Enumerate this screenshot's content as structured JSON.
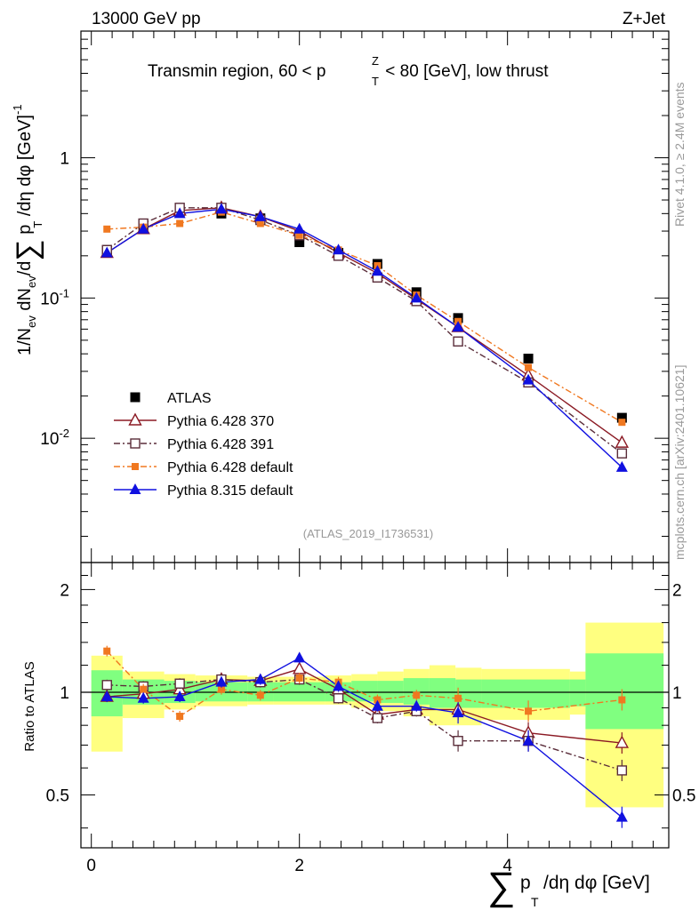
{
  "header": {
    "energy_label": "13000 GeV pp",
    "process_label": "Z+Jet",
    "title_prefix": "Transmin region, 60 < p",
    "title_sup": "Z",
    "title_sub": "T",
    "title_suffix": " < 80 [GeV], low thrust",
    "analysis_id": "(ATLAS_2019_I1736531)"
  },
  "side_labels": {
    "rivet": "Rivet 4.1.0, ≥ 2.4M events",
    "mcplots": "mcplots.cern.ch [arXiv:2401.10621]"
  },
  "axes": {
    "y_main_label": "1/N_ev dN_ev/d∑p_T/dη dφ [GeV]^-1",
    "y_main_ticks": [
      "10",
      "1",
      "10",
      "10"
    ],
    "y_main_exps": [
      "-2",
      "",
      "-1",
      ""
    ],
    "y_ratio_label": "Ratio to ATLAS",
    "y_ratio_ticks": [
      "0.5",
      "1",
      "2"
    ],
    "x_ticks": [
      "0",
      "2",
      "4"
    ],
    "x_label_sum": "∑",
    "x_label_p": "p",
    "x_label_sub": "T",
    "x_label_rest": "/dη dφ [GeV]"
  },
  "chart_data": {
    "type": "line",
    "title": "Transmin region, 60 < pT^Z < 80 [GeV], low thrust",
    "xlabel": "∑ pT/dη dφ [GeV]",
    "ylabel": "1/N_ev dN_ev/d∑pT/dη dφ [GeV]^-1",
    "xlim": [
      -0.1,
      5.55
    ],
    "ylim_main": [
      0.0013,
      8
    ],
    "yscale_main": "log",
    "ylim_ratio": [
      0.35,
      2.4
    ],
    "yscale_ratio": "log",
    "x": [
      0.15,
      0.5,
      0.85,
      1.25,
      1.625,
      2.0,
      2.375,
      2.75,
      3.125,
      3.525,
      4.2,
      5.1
    ],
    "bin_edges": [
      0.0,
      0.3,
      0.7,
      1.0,
      1.5,
      1.75,
      2.25,
      2.5,
      3.0,
      3.25,
      3.8,
      4.6,
      5.6
    ],
    "band_edges": [
      0,
      0.3,
      0.7,
      1.0,
      1.5,
      1.75,
      2.25,
      2.5,
      2.75,
      3.0,
      3.25,
      3.5,
      3.75,
      4.6,
      4.75,
      5.5
    ],
    "band_inner_lo": [
      0.85,
      0.92,
      0.93,
      0.94,
      0.94,
      0.94,
      0.94,
      0.94,
      0.93,
      0.92,
      0.9,
      0.9,
      0.9,
      0.91,
      0.78
    ],
    "band_inner_hi": [
      1.16,
      1.09,
      1.08,
      1.07,
      1.07,
      1.07,
      1.07,
      1.08,
      1.08,
      1.1,
      1.1,
      1.09,
      1.09,
      1.09,
      1.3
    ],
    "band_outer_lo": [
      0.67,
      0.84,
      0.89,
      0.91,
      0.92,
      0.92,
      0.92,
      0.9,
      0.88,
      0.85,
      0.8,
      0.8,
      0.83,
      0.86,
      0.46
    ],
    "band_outer_hi": [
      1.28,
      1.15,
      1.13,
      1.12,
      1.11,
      1.11,
      1.12,
      1.13,
      1.15,
      1.17,
      1.2,
      1.18,
      1.17,
      1.15,
      1.6
    ],
    "series": [
      {
        "name": "ATLAS",
        "marker": "square-filled",
        "color": "#000000",
        "line": "none",
        "values": [
          0.22,
          0.31,
          0.41,
          0.4,
          0.37,
          0.25,
          0.21,
          0.175,
          0.11,
          0.072,
          0.037,
          0.014
        ],
        "ratio": [
          1,
          1,
          1,
          1,
          1,
          1,
          1,
          1,
          1,
          1,
          1,
          1
        ]
      },
      {
        "name": "Pythia 6.428 370",
        "marker": "triangle-open",
        "color": "#8b1a24",
        "line": "solid",
        "values": [
          0.21,
          0.31,
          0.42,
          0.44,
          0.38,
          0.3,
          0.21,
          0.15,
          0.098,
          0.062,
          0.028,
          0.0093
        ],
        "ratio": [
          0.97,
          0.99,
          1.02,
          1.09,
          1.08,
          1.17,
          1.02,
          0.86,
          0.89,
          0.89,
          0.76,
          0.71
        ]
      },
      {
        "name": "Pythia 6.428 391",
        "marker": "square-open",
        "color": "#5a2d3a",
        "line": "dashdot",
        "values": [
          0.22,
          0.34,
          0.44,
          0.44,
          0.36,
          0.28,
          0.2,
          0.14,
          0.095,
          0.049,
          0.025,
          0.0078
        ],
        "ratio": [
          1.05,
          1.04,
          1.06,
          1.09,
          1.07,
          1.09,
          0.96,
          0.84,
          0.88,
          0.72,
          0.72,
          0.59
        ]
      },
      {
        "name": "Pythia 6.428 default",
        "marker": "square-filled",
        "color": "#f07820",
        "line": "dashdot",
        "values": [
          0.31,
          0.32,
          0.34,
          0.41,
          0.34,
          0.28,
          0.22,
          0.17,
          0.105,
          0.068,
          0.032,
          0.013
        ],
        "ratio": [
          1.32,
          1.02,
          0.85,
          1.02,
          0.98,
          1.1,
          1.07,
          0.95,
          0.98,
          0.96,
          0.88,
          0.95
        ]
      },
      {
        "name": "Pythia 8.315 default",
        "marker": "triangle-filled",
        "color": "#1010e0",
        "line": "solid",
        "values": [
          0.21,
          0.31,
          0.4,
          0.43,
          0.38,
          0.31,
          0.22,
          0.155,
          0.1,
          0.062,
          0.026,
          0.0062
        ],
        "ratio": [
          0.97,
          0.96,
          0.97,
          1.07,
          1.09,
          1.26,
          1.04,
          0.91,
          0.91,
          0.87,
          0.72,
          0.43
        ]
      }
    ],
    "legend_placement": "lower-left"
  },
  "colors": {
    "band_inner": "#80ff80",
    "band_outer": "#ffff80",
    "text_gray": "#999999",
    "axis": "#000000"
  }
}
